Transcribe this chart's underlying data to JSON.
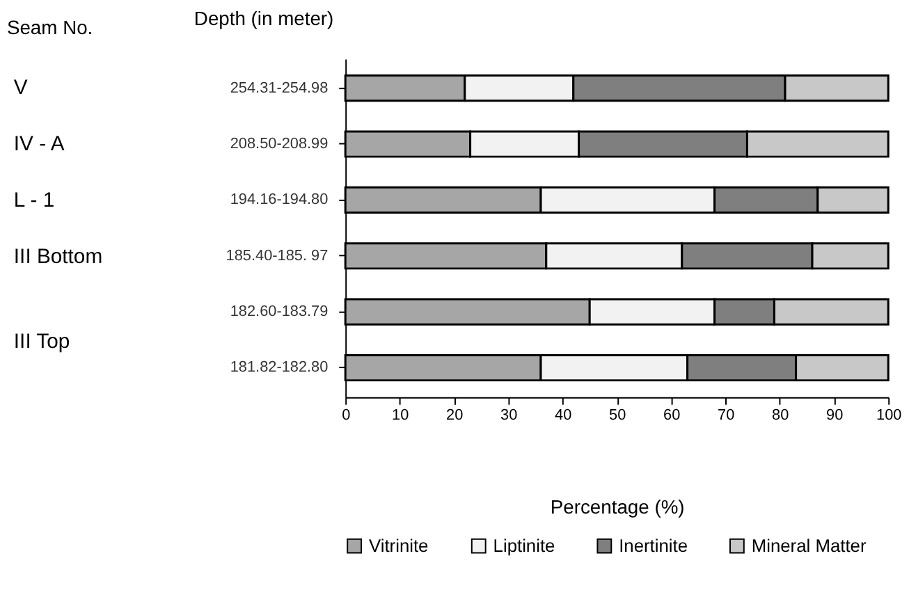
{
  "chart_data": {
    "type": "bar",
    "orientation": "horizontal",
    "stacked": true,
    "ylabel": "Depth (in meter)",
    "xlabel": "Percentage (%)",
    "categories": [
      "254.31-254.98",
      "208.50-208.99",
      "194.16-194.80",
      "185.40-185. 97",
      "182.60-183.79",
      "181.82-182.80"
    ],
    "series": [
      {
        "name": "Vitrinite",
        "color": "#a6a6a6",
        "values": [
          22,
          23,
          36,
          37,
          45,
          36
        ]
      },
      {
        "name": "Liptinite",
        "color": "#f2f2f2",
        "values": [
          20,
          20,
          32,
          25,
          23,
          27
        ]
      },
      {
        "name": "Inertinite",
        "color": "#7f7f7f",
        "values": [
          39,
          31,
          19,
          24,
          11,
          20
        ]
      },
      {
        "name": "Mineral Matter",
        "color": "#c8c8c8",
        "values": [
          19,
          26,
          13,
          14,
          21,
          17
        ]
      }
    ],
    "annotations": [
      "Seam No.",
      "V",
      "IV - A",
      "L - 1",
      "III Bottom",
      "III Top"
    ],
    "xlim": [
      0,
      100
    ],
    "xticks": [
      0,
      10,
      20,
      30,
      40,
      50,
      60,
      70,
      80,
      90,
      100
    ],
    "grid": false,
    "legend": "bottom"
  }
}
